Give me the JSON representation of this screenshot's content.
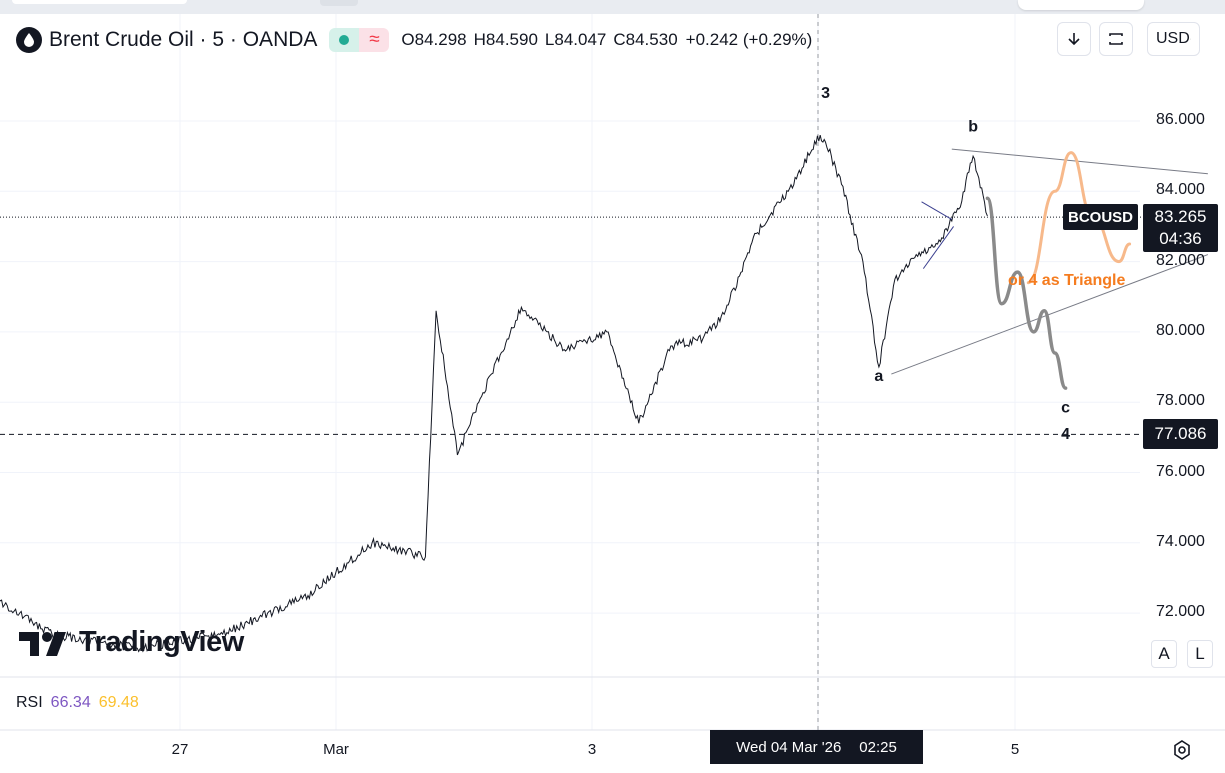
{
  "header": {
    "symbol_title": "Brent Crude Oil · 5 · OANDA",
    "market_status": "≈",
    "open": "O84.298",
    "high": "H84.590",
    "low": "L84.047",
    "close": "C84.530",
    "change": "+0.242 (+0.29%)",
    "currency": "USD",
    "icons": [
      "oil-drop-icon",
      "down-arrow-icon",
      "fullscreen-icon",
      "chevron-down-icon"
    ]
  },
  "price_label": {
    "ticker": "BCOUSD",
    "value": "83.265",
    "countdown": "04:36"
  },
  "target_label": "77.086",
  "brand": "TradingView",
  "scale_buttons": {
    "auto": "A",
    "log": "L"
  },
  "rsi": {
    "name": "RSI",
    "value1": "66.34",
    "value2": "69.48",
    "color1": "#7e57c2",
    "color2": "#fbc02d"
  },
  "cursor": {
    "date": "Wed 04 Mar '26",
    "time": "02:25"
  },
  "colors": {
    "candles": "#131722",
    "projection_gray": "#8a8a8a",
    "projection_orange": "#f7b98b",
    "annotation_orange": "#f57c1f"
  },
  "chart_data": {
    "type": "line",
    "price_scale": {
      "ticks": [
        "86.000",
        "84.000",
        "82.000",
        "80.000",
        "78.000",
        "76.000",
        "74.000",
        "72.000"
      ],
      "min": 70.5,
      "max": 87.5
    },
    "time_scale": {
      "ticks": [
        "27",
        "Mar",
        "3",
        "5"
      ]
    },
    "horizontal_lines": [
      {
        "price": 83.265,
        "style": "dotted"
      },
      {
        "price": 77.086,
        "style": "dashed"
      }
    ],
    "wave_labels": [
      {
        "text": "3",
        "time": "Mar 3 12:30",
        "price": 86.65
      },
      {
        "text": "b",
        "time": "Mar 4 02:20",
        "price": 85.7
      },
      {
        "text": "a",
        "time": "Mar 3 17:30",
        "price": 78.6
      },
      {
        "text": "c",
        "time": "Mar 4 11:00",
        "price": 77.7
      },
      {
        "text": "4",
        "time": "Mar 4 11:00",
        "price": 76.95
      }
    ],
    "annotation": "or 4 as Triangle",
    "series": [
      {
        "x": [
          "Feb 25 12:00",
          "Feb 25 22:00",
          "Feb 26 04:00",
          "Feb 26 12:00",
          "Feb 26 20:00",
          "Feb 27 04:00",
          "Feb 27 12:00",
          "Feb 27 18:00",
          "Feb 27 23:00",
          "Mar 1 23:00",
          "Mar 2 02:00",
          "Mar 2 04:00",
          "Mar 2 08:00",
          "Mar 2 12:00",
          "Mar 2 16:00",
          "Mar 2 19:00",
          "Mar 2 22:00",
          "Mar 3 01:00",
          "Mar 3 03:00",
          "Mar 3 06:00",
          "Mar 3 09:00",
          "Mar 3 12:00",
          "Mar 3 12:30",
          "Mar 3 14:00",
          "Mar 3 16:00",
          "Mar 3 17:30",
          "Mar 3 19:00",
          "Mar 3 21:00",
          "Mar 3 23:00",
          "Mar 4 01:00",
          "Mar 4 02:20",
          "Mar 4 03:40"
        ],
        "values": [
          71.4,
          71.0,
          72.9,
          71.4,
          71.0,
          71.4,
          72.5,
          74.0,
          73.6,
          80.6,
          76.5,
          78.0,
          80.7,
          79.5,
          80.0,
          77.4,
          79.6,
          79.8,
          80.5,
          82.8,
          84.0,
          85.6,
          85.4,
          84.2,
          82.0,
          79.0,
          81.5,
          82.2,
          82.5,
          83.5,
          85.0,
          83.3
        ]
      },
      {
        "x": [
          "Mar 4 03:40",
          "Mar 4 05:00",
          "Mar 4 06:30",
          "Mar 4 08:00",
          "Mar 4 09:00",
          "Mar 4 10:00",
          "Mar 4 11:00"
        ],
        "values": [
          83.8,
          80.8,
          81.7,
          80.0,
          80.6,
          79.4,
          78.4
        ]
      },
      {
        "x": [
          "Mar 4 07:30",
          "Mar 4 10:00",
          "Mar 4 11:30",
          "Mar 4 13:30",
          "Mar 4 16:00",
          "Mar 4 17:00"
        ],
        "values": [
          81.4,
          84.0,
          85.1,
          83.3,
          82.0,
          82.5
        ]
      }
    ],
    "trendlines": [
      {
        "from": {
          "time": "Mar 4 00:20",
          "price": 85.2
        },
        "to": {
          "time": "Mar 5 00:20",
          "price": 84.5
        }
      },
      {
        "from": {
          "time": "Mar 3 18:40",
          "price": 78.8
        },
        "to": {
          "time": "Mar 5 00:20",
          "price": 82.2
        }
      },
      {
        "from": {
          "time": "Mar 3 21:30",
          "price": 83.7
        },
        "to": {
          "time": "Mar 4 00:20",
          "price": 83.2
        }
      },
      {
        "from": {
          "time": "Mar 3 21:40",
          "price": 81.8
        },
        "to": {
          "time": "Mar 4 00:30",
          "price": 83.0
        }
      }
    ]
  }
}
